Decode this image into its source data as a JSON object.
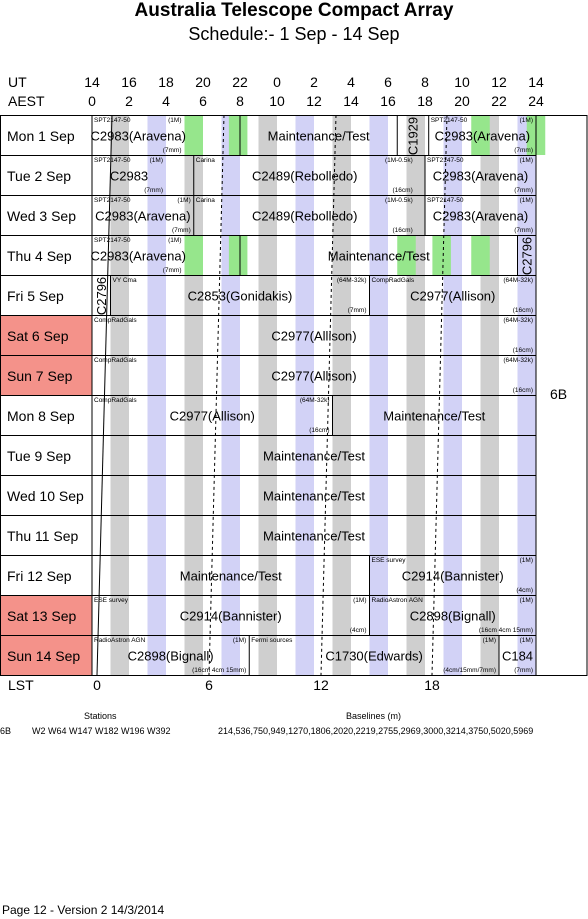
{
  "title": "Australia Telescope Compact Array",
  "subtitle": "Schedule:- 1  Sep - 14 Sep",
  "axes": {
    "ut_label": "UT",
    "aest_label": "AEST",
    "lst_label": "LST",
    "ut_ticks": [
      "14",
      "16",
      "18",
      "20",
      "22",
      "0",
      "2",
      "4",
      "6",
      "8",
      "10",
      "12",
      "14"
    ],
    "aest_ticks": [
      "0",
      "2",
      "4",
      "6",
      "8",
      "10",
      "12",
      "14",
      "16",
      "18",
      "20",
      "22",
      "24"
    ],
    "lst_ticks": [
      "0",
      "6",
      "12",
      "18"
    ]
  },
  "config_label": "6B",
  "days": [
    {
      "label": "Mon  1 Sep",
      "weekend": false
    },
    {
      "label": "Tue  2 Sep",
      "weekend": false
    },
    {
      "label": "Wed  3 Sep",
      "weekend": false
    },
    {
      "label": "Thu  4 Sep",
      "weekend": false
    },
    {
      "label": "Fri  5 Sep",
      "weekend": false
    },
    {
      "label": "Sat  6 Sep",
      "weekend": true
    },
    {
      "label": "Sun  7 Sep",
      "weekend": true
    },
    {
      "label": "Mon  8 Sep",
      "weekend": false
    },
    {
      "label": "Tue  9 Sep",
      "weekend": false
    },
    {
      "label": "Wed 10 Sep",
      "weekend": false
    },
    {
      "label": "Thu  11 Sep",
      "weekend": false
    },
    {
      "label": "Fri  12 Sep",
      "weekend": false
    },
    {
      "label": "Sat  13 Sep",
      "weekend": true
    },
    {
      "label": "Sun  14 Sep",
      "weekend": true
    }
  ],
  "blocks": [
    {
      "day": 0,
      "start": 0,
      "end": 5,
      "label": "C2983(Aravena)",
      "tl": "SPT2147-50",
      "tr": "(1M)",
      "br": "(7mm)"
    },
    {
      "day": 0,
      "start": 8,
      "end": 16.5,
      "label": "Maintenance/Test"
    },
    {
      "day": 0,
      "start": 16.5,
      "end": 18.2,
      "label": "C1929",
      "vertical": true
    },
    {
      "day": 0,
      "start": 18.2,
      "end": 24,
      "label": "C2983(Aravena)",
      "tl": "SPT2147-50",
      "tr": "(1M)",
      "br": "(7mm)"
    },
    {
      "day": 1,
      "start": 0,
      "end": 4,
      "label": "C2983",
      "tl": "SPT2147-50",
      "tr": "(1M)",
      "br": "(7mm)"
    },
    {
      "day": 1,
      "start": 5.5,
      "end": 17.5,
      "label": "C2489(Rebolledo)",
      "tl": "Carina",
      "tr": "(1M-0.5k)",
      "br": "(16cm)"
    },
    {
      "day": 1,
      "start": 18,
      "end": 24,
      "label": "C2983(Aravena)",
      "tl": "SPT2147-50",
      "tr": "(1M)",
      "br": "(7mm)"
    },
    {
      "day": 2,
      "start": 0,
      "end": 5.5,
      "label": "C2983(Aravena)",
      "tl": "SPT2147-50",
      "tr": "(1M)",
      "br": "(7mm)"
    },
    {
      "day": 2,
      "start": 5.5,
      "end": 17.5,
      "label": "C2489(Rebolledo)",
      "tl": "Carina",
      "tr": "(1M-0.5k)",
      "br": "(16cm)"
    },
    {
      "day": 2,
      "start": 18,
      "end": 24,
      "label": "C2983(Aravena)",
      "tl": "SPT2147-50",
      "tr": "(1M)",
      "br": "(7mm)"
    },
    {
      "day": 3,
      "start": 0,
      "end": 5,
      "label": "C2983(Aravena)",
      "tl": "SPT2147-50",
      "tr": "(1M)",
      "br": "(7mm)"
    },
    {
      "day": 3,
      "start": 8,
      "end": 23,
      "label": "Maintenance/Test"
    },
    {
      "day": 3,
      "start": 23,
      "end": 24,
      "label": "C2796",
      "vertical": true
    },
    {
      "day": 4,
      "start": 0,
      "end": 1,
      "label": "C2796",
      "vertical": true
    },
    {
      "day": 4,
      "start": 1,
      "end": 15,
      "label": "C2853(Gonidakis)",
      "tl": "VY Cma",
      "tr": "(64M-32k)",
      "br": "(7mm)"
    },
    {
      "day": 4,
      "start": 15,
      "end": 24,
      "label": "C2977(Allison)",
      "tl": "CompRadGals",
      "tr": "(64M-32k)",
      "br": "(16cm)"
    },
    {
      "day": 5,
      "start": 0,
      "end": 24,
      "label": "C2977(Allison)",
      "tl": "CompRadGals",
      "tr": "(64M-32k)",
      "br": "(16cm)"
    },
    {
      "day": 6,
      "start": 0,
      "end": 24,
      "label": "C2977(Allison)",
      "tl": "CompRadGals",
      "tr": "(64M-32k)",
      "br": "(16cm)"
    },
    {
      "day": 7,
      "start": 0,
      "end": 13,
      "label": "C2977(Allison)",
      "tl": "CompRadGals",
      "tr": "(64M-32k)",
      "br": "(16cm)"
    },
    {
      "day": 7,
      "start": 13,
      "end": 24,
      "label": "Maintenance/Test"
    },
    {
      "day": 8,
      "start": 0,
      "end": 24,
      "label": "Maintenance/Test"
    },
    {
      "day": 9,
      "start": 0,
      "end": 24,
      "label": "Maintenance/Test"
    },
    {
      "day": 10,
      "start": 0,
      "end": 24,
      "label": "Maintenance/Test"
    },
    {
      "day": 11,
      "start": 0,
      "end": 15,
      "label": "Maintenance/Test"
    },
    {
      "day": 11,
      "start": 15,
      "end": 24,
      "label": "C2914(Bannister)",
      "tl": "ESE survey",
      "tr": "(1M)",
      "br": "(4cm)"
    },
    {
      "day": 12,
      "start": 0,
      "end": 15,
      "label": "C2914(Bannister)",
      "tl": "ESE survey",
      "tr": "(1M)",
      "br": "(4cm)"
    },
    {
      "day": 12,
      "start": 15,
      "end": 24,
      "label": "C2898(Bignall)",
      "tl": "RadioAstron AGN",
      "tr": "(1M)",
      "br": "(16cm 4cm 15mm)"
    },
    {
      "day": 13,
      "start": 0,
      "end": 8.5,
      "label": "C2898(Bignall)",
      "tl": "RadioAstron AGN",
      "tr": "(1M)",
      "br": "(16cm 4cm 15mm)"
    },
    {
      "day": 13,
      "start": 8.5,
      "end": 22,
      "label": "C1730(Edwards)",
      "tl": "Fermi sources",
      "tr": "(1M)",
      "br": "(4cm/15mm/7mm)"
    },
    {
      "day": 13,
      "start": 22,
      "end": 24,
      "label": "C184",
      "tr": "(1M)",
      "br": "(7mm)"
    }
  ],
  "footer": {
    "config": "6B",
    "stations_label": "Stations",
    "stations": "W2 W64 W147 W182 W196 W392",
    "baselines_label": "Baselines (m)",
    "baselines": "214,536,750,949,1270,1806,2020,2219,2755,2969,3000,3214,3750,5020,5969",
    "page": "Page 12 - Version 2  14/3/2014"
  }
}
